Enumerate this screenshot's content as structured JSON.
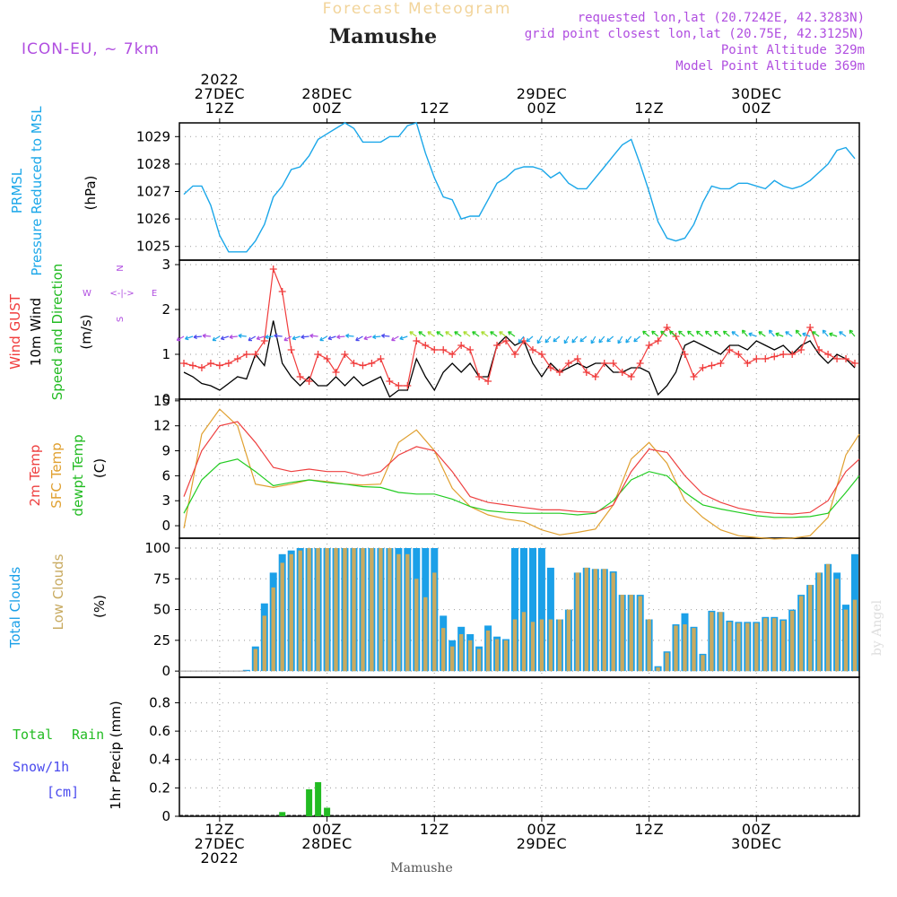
{
  "header": {
    "forecast_label": "Forecast Meteogram",
    "station": "Mamushe",
    "model": "ICON-EU, ~ 7km",
    "requested": "requested lon,lat (20.7242E, 42.3283N)",
    "grid_point": "grid point closest lon,lat (20.75E, 42.3125N)",
    "point_alt": "Point Altitude 329m",
    "model_alt": "Model Point Altitude 369m",
    "footer_station": "Mamushe",
    "watermark": "by Angel"
  },
  "time_axis": {
    "top_labels": [
      {
        "h": 12,
        "lines": [
          "2022",
          "27DEC",
          "12Z"
        ]
      },
      {
        "h": 24,
        "lines": [
          "28DEC",
          "00Z"
        ]
      },
      {
        "h": 36,
        "lines": [
          "12Z"
        ]
      },
      {
        "h": 48,
        "lines": [
          "29DEC",
          "00Z"
        ]
      },
      {
        "h": 60,
        "lines": [
          "12Z"
        ]
      },
      {
        "h": 72,
        "lines": [
          "30DEC",
          "00Z"
        ]
      }
    ],
    "bottom_labels": [
      {
        "h": 12,
        "lines": [
          "12Z",
          "27DEC",
          "2022"
        ]
      },
      {
        "h": 24,
        "lines": [
          "00Z",
          "28DEC"
        ]
      },
      {
        "h": 36,
        "lines": [
          "12Z"
        ]
      },
      {
        "h": 48,
        "lines": [
          "00Z",
          "29DEC"
        ]
      },
      {
        "h": 60,
        "lines": [
          "12Z"
        ]
      },
      {
        "h": 72,
        "lines": [
          "00Z",
          "30DEC"
        ]
      }
    ],
    "range_hours": [
      7.5,
      83.5
    ]
  },
  "labels": {
    "p1": [
      "PRMSL",
      "Pressure Reduced to MSL",
      "(hPa)"
    ],
    "p2": [
      "Wind GUST",
      "10m Wind",
      "Speed and Direction",
      "(m/s)"
    ],
    "compass": {
      "n": "N",
      "s": "S",
      "w": "W",
      "e": "E",
      "cross": "<-|->"
    },
    "p3": [
      "2m Temp",
      "SFC Temp",
      "dewpt Temp",
      "(C)"
    ],
    "p4": [
      "Total Clouds",
      "Low Clouds",
      "(%)"
    ],
    "p5": [
      "Total",
      "Rain",
      "Snow/1h",
      "[cm]",
      "1hr Precip (mm)"
    ]
  },
  "colors": {
    "pressure": "#1ba7e9",
    "gust": "#f03c3c",
    "wind": "#000000",
    "temp2m": "#ee4040",
    "sfc": "#e0a030",
    "dew": "#22cc22",
    "total_cloud": "#1ba0e8",
    "low_cloud": "#c8aa60",
    "rain": "#22bb22",
    "snow": "#4a4aee",
    "model": "#b04ee0",
    "grey": "#aaaaaa"
  },
  "chart_data": [
    {
      "type": "line",
      "title": "PRMSL Pressure Reduced to MSL",
      "ylabel": "(hPa)",
      "ylim": [
        1024.5,
        1029.5
      ],
      "yticks": [
        1025,
        1026,
        1027,
        1028,
        1029
      ],
      "x": [
        8,
        9,
        10,
        11,
        12,
        13,
        14,
        15,
        16,
        17,
        18,
        19,
        20,
        21,
        22,
        23,
        24,
        25,
        26,
        27,
        28,
        29,
        30,
        31,
        32,
        33,
        34,
        35,
        36,
        37,
        38,
        39,
        40,
        41,
        42,
        43,
        44,
        45,
        46,
        47,
        48,
        49,
        50,
        51,
        52,
        53,
        54,
        55,
        56,
        57,
        58,
        59,
        60,
        61,
        62,
        63,
        64,
        65,
        66,
        67,
        68,
        69,
        70,
        71,
        72,
        73,
        74,
        75,
        76,
        77,
        78,
        79,
        80,
        81,
        82,
        83
      ],
      "series": [
        {
          "name": "PRMSL",
          "values": [
            1026.9,
            1027.2,
            1027.2,
            1026.5,
            1025.4,
            1024.8,
            1024.8,
            1024.8,
            1025.2,
            1025.8,
            1026.8,
            1027.2,
            1027.8,
            1027.9,
            1028.3,
            1028.9,
            1029.1,
            1029.3,
            1029.5,
            1029.3,
            1028.8,
            1028.8,
            1028.8,
            1029.0,
            1029.0,
            1029.4,
            1029.5,
            1028.4,
            1027.5,
            1026.8,
            1026.7,
            1026.0,
            1026.1,
            1026.1,
            1026.7,
            1027.3,
            1027.5,
            1027.8,
            1027.9,
            1027.9,
            1027.8,
            1027.5,
            1027.7,
            1027.3,
            1027.1,
            1027.1,
            1027.5,
            1027.9,
            1028.3,
            1028.7,
            1028.9,
            1028.0,
            1027.0,
            1025.9,
            1025.3,
            1025.2,
            1025.3,
            1025.8,
            1026.6,
            1027.2,
            1027.1,
            1027.1,
            1027.3,
            1027.3,
            1027.2,
            1027.1,
            1027.4,
            1027.2,
            1027.1,
            1027.2,
            1027.4,
            1027.7,
            1028.0,
            1028.5,
            1028.6,
            1028.2
          ]
        }
      ]
    },
    {
      "type": "line",
      "title": "Wind GUST / 10m Wind Speed and Direction",
      "ylabel": "(m/s)",
      "ylim": [
        0,
        3.1
      ],
      "yticks": [
        0,
        1,
        2,
        3
      ],
      "x": [
        8,
        9,
        10,
        11,
        12,
        13,
        14,
        15,
        16,
        17,
        18,
        19,
        20,
        21,
        22,
        23,
        24,
        25,
        26,
        27,
        28,
        29,
        30,
        31,
        32,
        33,
        34,
        35,
        36,
        37,
        38,
        39,
        40,
        41,
        42,
        43,
        44,
        45,
        46,
        47,
        48,
        49,
        50,
        51,
        52,
        53,
        54,
        55,
        56,
        57,
        58,
        59,
        60,
        61,
        62,
        63,
        64,
        65,
        66,
        67,
        68,
        69,
        70,
        71,
        72,
        73,
        74,
        75,
        76,
        77,
        78,
        79,
        80,
        81,
        82,
        83
      ],
      "series": [
        {
          "name": "Wind GUST",
          "values": [
            0.8,
            0.75,
            0.7,
            0.8,
            0.75,
            0.8,
            0.9,
            1.0,
            1.0,
            1.3,
            2.9,
            2.4,
            1.1,
            0.5,
            0.4,
            1.0,
            0.9,
            0.6,
            1.0,
            0.8,
            0.75,
            0.8,
            0.9,
            0.4,
            0.3,
            0.3,
            1.3,
            1.2,
            1.1,
            1.1,
            1.0,
            1.2,
            1.1,
            0.5,
            0.4,
            1.2,
            1.3,
            1.0,
            1.3,
            1.1,
            1.0,
            0.7,
            0.6,
            0.8,
            0.9,
            0.6,
            0.5,
            0.8,
            0.8,
            0.6,
            0.5,
            0.8,
            1.2,
            1.3,
            1.6,
            1.4,
            1.0,
            0.5,
            0.7,
            0.75,
            0.8,
            1.1,
            1.0,
            0.8,
            0.9,
            0.9,
            0.95,
            1.0,
            1.0,
            1.1,
            1.6,
            1.1,
            1.0,
            0.9,
            0.9,
            0.8
          ]
        },
        {
          "name": "10m Wind",
          "values": [
            0.6,
            0.5,
            0.35,
            0.3,
            0.2,
            0.35,
            0.5,
            0.45,
            1.0,
            0.75,
            1.75,
            0.8,
            0.5,
            0.3,
            0.5,
            0.3,
            0.3,
            0.5,
            0.3,
            0.5,
            0.3,
            0.4,
            0.5,
            0.05,
            0.2,
            0.2,
            0.9,
            0.5,
            0.2,
            0.6,
            0.8,
            0.6,
            0.8,
            0.5,
            0.5,
            1.2,
            1.4,
            1.2,
            1.3,
            0.8,
            0.5,
            0.8,
            0.6,
            0.7,
            0.8,
            0.7,
            0.8,
            0.8,
            0.6,
            0.6,
            0.7,
            0.7,
            0.6,
            0.1,
            0.3,
            0.6,
            1.2,
            1.3,
            1.2,
            1.1,
            1.0,
            1.2,
            1.2,
            1.1,
            1.3,
            1.2,
            1.1,
            1.2,
            1.0,
            1.2,
            1.3,
            1.0,
            0.8,
            1.0,
            0.9,
            0.7
          ]
        }
      ]
    },
    {
      "type": "line",
      "title": "2m Temp / SFC Temp / dewpt Temp",
      "ylabel": "(C)",
      "ylim": [
        -1.5,
        15.2
      ],
      "yticks": [
        0,
        3,
        6,
        9,
        12,
        15
      ],
      "x": [
        8,
        10,
        12,
        14,
        16,
        18,
        20,
        22,
        24,
        26,
        28,
        30,
        32,
        34,
        36,
        38,
        40,
        42,
        44,
        46,
        48,
        50,
        52,
        54,
        56,
        58,
        60,
        62,
        64,
        66,
        68,
        70,
        72,
        74,
        76,
        78,
        80,
        82,
        83.5
      ],
      "series": [
        {
          "name": "2m Temp",
          "values": [
            3.5,
            9.0,
            12.0,
            12.5,
            10.0,
            7.0,
            6.5,
            6.8,
            6.5,
            6.5,
            6.0,
            6.5,
            8.5,
            9.5,
            9.0,
            6.5,
            3.5,
            2.8,
            2.5,
            2.2,
            1.9,
            1.9,
            1.7,
            1.6,
            2.5,
            6.5,
            9.2,
            8.8,
            6.0,
            3.8,
            2.8,
            2.1,
            1.7,
            1.5,
            1.4,
            1.6,
            3.0,
            6.5,
            8.0
          ]
        },
        {
          "name": "SFC Temp",
          "values": [
            -0.3,
            11.0,
            14.0,
            12.0,
            5.0,
            4.6,
            5.0,
            5.5,
            5.3,
            5.0,
            4.9,
            5.0,
            10.0,
            11.5,
            9.0,
            4.5,
            2.3,
            1.3,
            0.8,
            0.5,
            -0.5,
            -1.1,
            -0.8,
            -0.4,
            2.5,
            8.0,
            10.0,
            7.5,
            3.0,
            1.0,
            -0.5,
            -1.2,
            -1.4,
            -1.6,
            -1.5,
            -1.2,
            1.0,
            8.5,
            11.0
          ]
        },
        {
          "name": "dewpt Temp",
          "values": [
            1.5,
            5.5,
            7.5,
            8.0,
            6.5,
            4.8,
            5.2,
            5.5,
            5.2,
            5.0,
            4.7,
            4.6,
            4.0,
            3.8,
            3.8,
            3.2,
            2.3,
            1.8,
            1.6,
            1.5,
            1.5,
            1.5,
            1.3,
            1.5,
            3.0,
            5.5,
            6.5,
            6.0,
            4.0,
            2.5,
            2.0,
            1.6,
            1.2,
            1.0,
            1.0,
            1.1,
            1.5,
            4.0,
            6.0
          ]
        }
      ]
    },
    {
      "type": "bar",
      "title": "Total Clouds / Low Clouds",
      "ylabel": "(%)",
      "ylim": [
        -5,
        108
      ],
      "yticks": [
        0,
        25,
        50,
        75,
        100
      ],
      "x": [
        8,
        9,
        10,
        11,
        12,
        13,
        14,
        15,
        16,
        17,
        18,
        19,
        20,
        21,
        22,
        23,
        24,
        25,
        26,
        27,
        28,
        29,
        30,
        31,
        32,
        33,
        34,
        35,
        36,
        37,
        38,
        39,
        40,
        41,
        42,
        43,
        44,
        45,
        46,
        47,
        48,
        49,
        50,
        51,
        52,
        53,
        54,
        55,
        56,
        57,
        58,
        59,
        60,
        61,
        62,
        63,
        64,
        65,
        66,
        67,
        68,
        69,
        70,
        71,
        72,
        73,
        74,
        75,
        76,
        77,
        78,
        79,
        80,
        81,
        82,
        83
      ],
      "series": [
        {
          "name": "Total Clouds",
          "values": [
            0,
            0,
            0,
            0,
            0,
            0,
            0,
            1,
            20,
            55,
            80,
            95,
            98,
            100,
            100,
            100,
            100,
            100,
            100,
            100,
            100,
            100,
            100,
            100,
            100,
            100,
            100,
            100,
            100,
            45,
            25,
            36,
            30,
            20,
            37,
            28,
            26,
            100,
            100,
            100,
            100,
            84,
            42,
            50,
            80,
            84,
            83,
            83,
            81,
            62,
            62,
            62,
            42,
            4,
            16,
            38,
            47,
            36,
            14,
            49,
            48,
            41,
            40,
            40,
            40,
            44,
            44,
            42,
            50,
            62,
            70,
            80,
            87,
            80,
            54,
            95
          ]
        },
        {
          "name": "Low Clouds",
          "values": [
            0,
            0,
            0,
            0,
            0,
            0,
            0,
            0,
            18,
            45,
            68,
            88,
            95,
            98,
            100,
            100,
            100,
            100,
            100,
            100,
            100,
            100,
            100,
            100,
            95,
            95,
            75,
            60,
            80,
            35,
            20,
            30,
            25,
            18,
            33,
            26,
            25,
            42,
            48,
            40,
            42,
            42,
            42,
            50,
            80,
            84,
            83,
            83,
            80,
            62,
            62,
            61,
            42,
            3,
            15,
            37,
            38,
            35,
            13,
            48,
            48,
            40,
            39,
            39,
            39,
            43,
            43,
            41,
            49,
            61,
            70,
            80,
            87,
            75,
            50,
            58
          ]
        }
      ]
    },
    {
      "type": "bar",
      "title": "1hr Precip (mm)",
      "ylabel": "1hr Precip (mm)",
      "ylim": [
        0,
        0.98
      ],
      "yticks": [
        0,
        0.2,
        0.4,
        0.6,
        0.8
      ],
      "x": [
        19,
        22,
        23,
        24
      ],
      "series": [
        {
          "name": "Total Rain",
          "values": [
            0.03,
            0.19,
            0.24,
            0.06
          ]
        },
        {
          "name": "Snow/1h",
          "values": [
            0,
            0,
            0,
            0
          ]
        }
      ]
    }
  ]
}
